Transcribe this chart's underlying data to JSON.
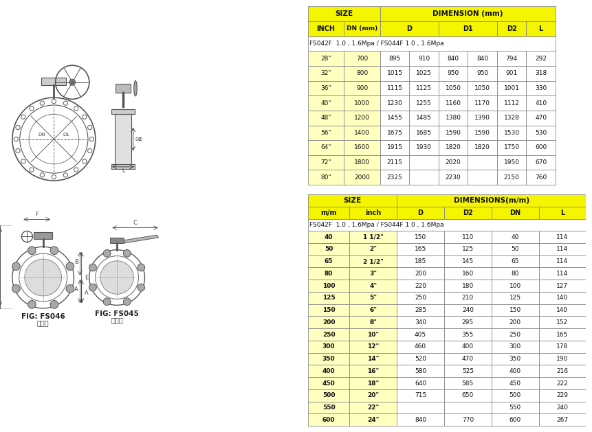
{
  "bg_color": "#f5f5f0",
  "table1": {
    "title_row": [
      "SIZE",
      "",
      "DIMENSION (mm)",
      "",
      "",
      "",
      ""
    ],
    "header_row": [
      "INCH",
      "DN (mm)",
      "D",
      "",
      "D1",
      "",
      "D2",
      "L"
    ],
    "note": "FS042F  1.0 , 1.6Mpa / FS044F 1.0 , 1.6Mpa",
    "rows": [
      [
        "28\"",
        "700",
        "895",
        "910",
        "840",
        "840",
        "794",
        "292"
      ],
      [
        "32\"",
        "800",
        "1015",
        "1025",
        "950",
        "950",
        "901",
        "318"
      ],
      [
        "36\"",
        "900",
        "1115",
        "1125",
        "1050",
        "1050",
        "1001",
        "330"
      ],
      [
        "40\"",
        "1000",
        "1230",
        "1255",
        "1160",
        "1170",
        "1112",
        "410"
      ],
      [
        "48\"",
        "1200",
        "1455",
        "1485",
        "1380",
        "1390",
        "1328",
        "470"
      ],
      [
        "56\"",
        "1400",
        "1675",
        "1685",
        "1590",
        "1590",
        "1530",
        "530"
      ],
      [
        "64\"",
        "1600",
        "1915",
        "1930",
        "1820",
        "1820",
        "1750",
        "600"
      ],
      [
        "72\"",
        "1800",
        "2115",
        "",
        "2020",
        "",
        "1950",
        "670"
      ],
      [
        "80\"",
        "2000",
        "2325",
        "",
        "2230",
        "",
        "2150",
        "760"
      ]
    ],
    "header_bg": "#f5f500",
    "row_bg": "#ffffff",
    "border_color": "#888888"
  },
  "table2": {
    "title_row": [
      "SIZE",
      "",
      "DIMENSIONS(m/m)",
      "",
      "",
      ""
    ],
    "header_row": [
      "m/m",
      "inch",
      "D",
      "D2",
      "DN",
      "L"
    ],
    "note": "FS042F  1.0 , 1.6Mpa / FS044F 1.0 , 1.6Mpa",
    "rows": [
      [
        "40",
        "1 1/2\"",
        "150",
        "110",
        "40",
        "114"
      ],
      [
        "50",
        "2\"",
        "165",
        "125",
        "50",
        "114"
      ],
      [
        "65",
        "2 1/2\"",
        "185",
        "145",
        "65",
        "114"
      ],
      [
        "80",
        "3\"",
        "200",
        "160",
        "80",
        "114"
      ],
      [
        "100",
        "4\"",
        "220",
        "180",
        "100",
        "127"
      ],
      [
        "125",
        "5\"",
        "250",
        "210",
        "125",
        "140"
      ],
      [
        "150",
        "6\"",
        "285",
        "240",
        "150",
        "140"
      ],
      [
        "200",
        "8\"",
        "340",
        "295",
        "200",
        "152"
      ],
      [
        "250",
        "10\"",
        "405",
        "355",
        "250",
        "165"
      ],
      [
        "300",
        "12\"",
        "460",
        "400",
        "300",
        "178"
      ],
      [
        "350",
        "14\"",
        "520",
        "470",
        "350",
        "190"
      ],
      [
        "400",
        "16\"",
        "580",
        "525",
        "400",
        "216"
      ],
      [
        "450",
        "18\"",
        "640",
        "585",
        "450",
        "222"
      ],
      [
        "500",
        "20\"",
        "715",
        "650",
        "500",
        "229"
      ],
      [
        "550",
        "22\"",
        "",
        "",
        "550",
        "240"
      ],
      [
        "600",
        "24\"",
        "840",
        "770",
        "600",
        "267"
      ]
    ],
    "header_bg": "#f5f500",
    "row_bg": "#ffffff",
    "border_color": "#888888"
  },
  "fig1_label": "FIG: FS046",
  "fig1_sublabel": "齿轮式",
  "fig2_label": "FIG: FS045",
  "fig2_sublabel": "把手式"
}
